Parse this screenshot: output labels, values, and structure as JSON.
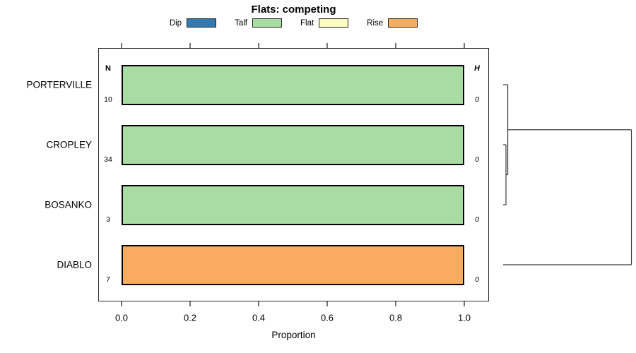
{
  "title": "Flats: competing",
  "legend": [
    {
      "label": "Dip",
      "color": "#3579B1"
    },
    {
      "label": "Talf",
      "color": "#A9DCA2"
    },
    {
      "label": "Flat",
      "color": "#FCFCC2"
    },
    {
      "label": "Rise",
      "color": "#F9AC60"
    }
  ],
  "columns": {
    "n_header": "N",
    "h_header": "H"
  },
  "chart_data": {
    "type": "bar",
    "orientation": "horizontal",
    "stacked_proportions": true,
    "title": "Flats: competing",
    "xlabel": "Proportion",
    "xlim": [
      0.0,
      1.0
    ],
    "x_ticks": [
      0.0,
      0.2,
      0.4,
      0.6,
      0.8,
      1.0
    ],
    "x_tick_labels": [
      "0.0",
      "0.2",
      "0.4",
      "0.6",
      "0.8",
      "1.0"
    ],
    "legend_position": "top",
    "categories": [
      "PORTERVILLE",
      "CROPLEY",
      "BOSANKO",
      "DIABLO"
    ],
    "rows": [
      {
        "label": "PORTERVILLE",
        "n": 10,
        "h": 0,
        "segments": [
          {
            "category": "Talf",
            "proportion": 1.0
          }
        ]
      },
      {
        "label": "CROPLEY",
        "n": 34,
        "h": 0,
        "segments": [
          {
            "category": "Talf",
            "proportion": 1.0
          }
        ]
      },
      {
        "label": "BOSANKO",
        "n": 3,
        "h": 0,
        "segments": [
          {
            "category": "Talf",
            "proportion": 1.0
          }
        ]
      },
      {
        "label": "DIABLO",
        "n": 7,
        "h": 0,
        "segments": [
          {
            "category": "Rise",
            "proportion": 1.0
          }
        ]
      }
    ],
    "dendrogram": {
      "leaves": [
        "PORTERVILLE",
        "CROPLEY",
        "BOSANKO",
        "DIABLO"
      ],
      "merges": [
        {
          "left": "CROPLEY",
          "right": "BOSANKO",
          "height": 0.022
        },
        {
          "left": "PORTERVILLE",
          "right": "m0",
          "height": 0.036
        },
        {
          "left": "m1",
          "right": "DIABLO",
          "height": 1.0
        }
      ]
    }
  }
}
